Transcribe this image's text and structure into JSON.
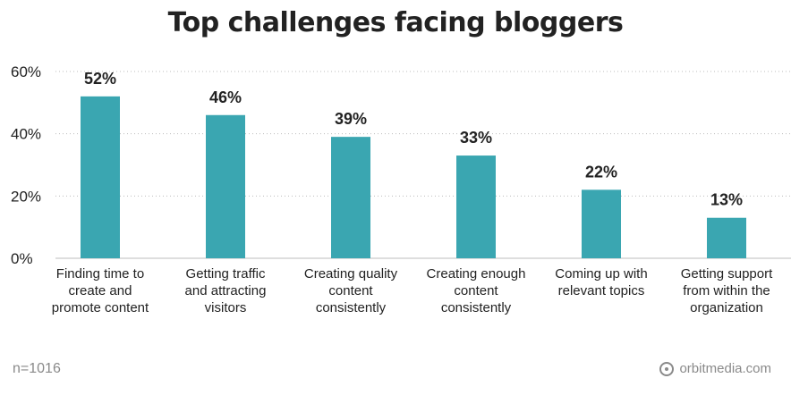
{
  "chart_data": {
    "type": "bar",
    "title": "Top challenges facing bloggers",
    "categories": [
      [
        "Finding time to",
        "create and",
        "promote content"
      ],
      [
        "Getting traffic",
        "and attracting",
        "visitors"
      ],
      [
        "Creating quality",
        "content",
        "consistently"
      ],
      [
        "Creating enough",
        "content",
        "consistently"
      ],
      [
        "Coming up with",
        "relevant topics"
      ],
      [
        "Getting support",
        "from within the",
        "organization"
      ]
    ],
    "values": [
      52,
      46,
      39,
      33,
      22,
      13
    ],
    "value_labels": [
      "52%",
      "46%",
      "39%",
      "33%",
      "22%",
      "13%"
    ],
    "ylim": [
      0,
      60
    ],
    "yticks": [
      0,
      20,
      40,
      60
    ],
    "ytick_labels": [
      "0%",
      "20%",
      "40%",
      "60%"
    ],
    "grid": "horizontal-dotted",
    "bar_color": "#3aa6b1"
  },
  "footer": {
    "sample_size": "n=1016",
    "brand": "orbitmedia.com"
  }
}
